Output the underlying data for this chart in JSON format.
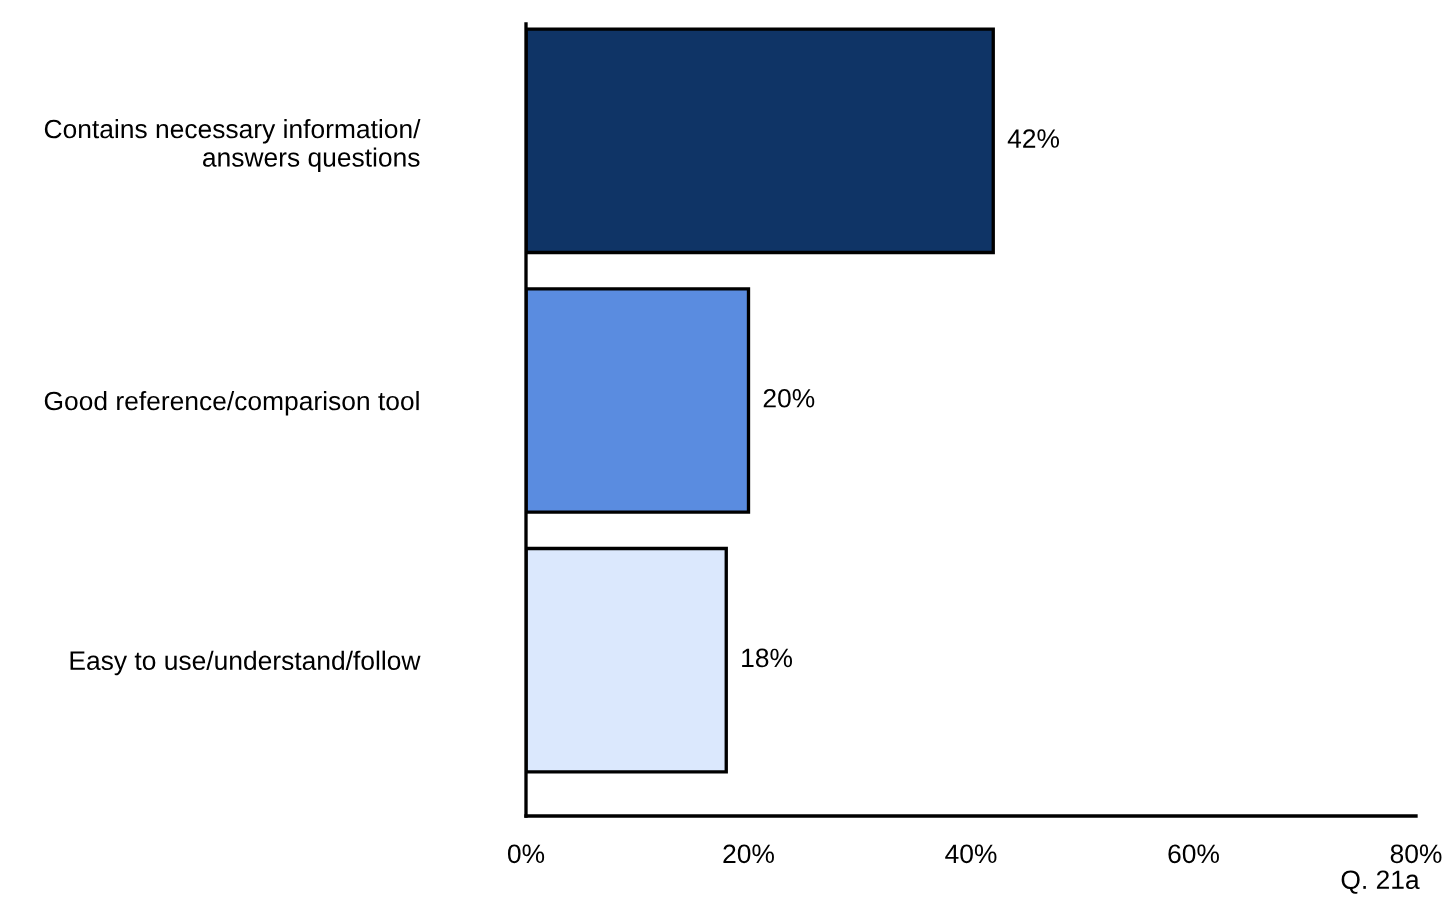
{
  "chart_data": {
    "type": "bar",
    "orientation": "horizontal",
    "categories": [
      "Contains necessary information/\nanswers questions",
      "Good reference/comparison tool",
      "Easy to use/understand/follow"
    ],
    "values": [
      42,
      20,
      18
    ],
    "colors": [
      "#0f3466",
      "#5a8ce0",
      "#dbe8fd"
    ],
    "value_labels": [
      "42%",
      "20%",
      "18%"
    ],
    "xlim": [
      0,
      80
    ],
    "xticks": [
      {
        "value": 0,
        "label": "0%"
      },
      {
        "value": 20,
        "label": "20%"
      },
      {
        "value": 40,
        "label": "40%"
      },
      {
        "value": 60,
        "label": "60%"
      },
      {
        "value": 80,
        "label": "80%"
      }
    ],
    "annotations": [
      "Q. 21a"
    ],
    "grid": false,
    "legend": false
  }
}
